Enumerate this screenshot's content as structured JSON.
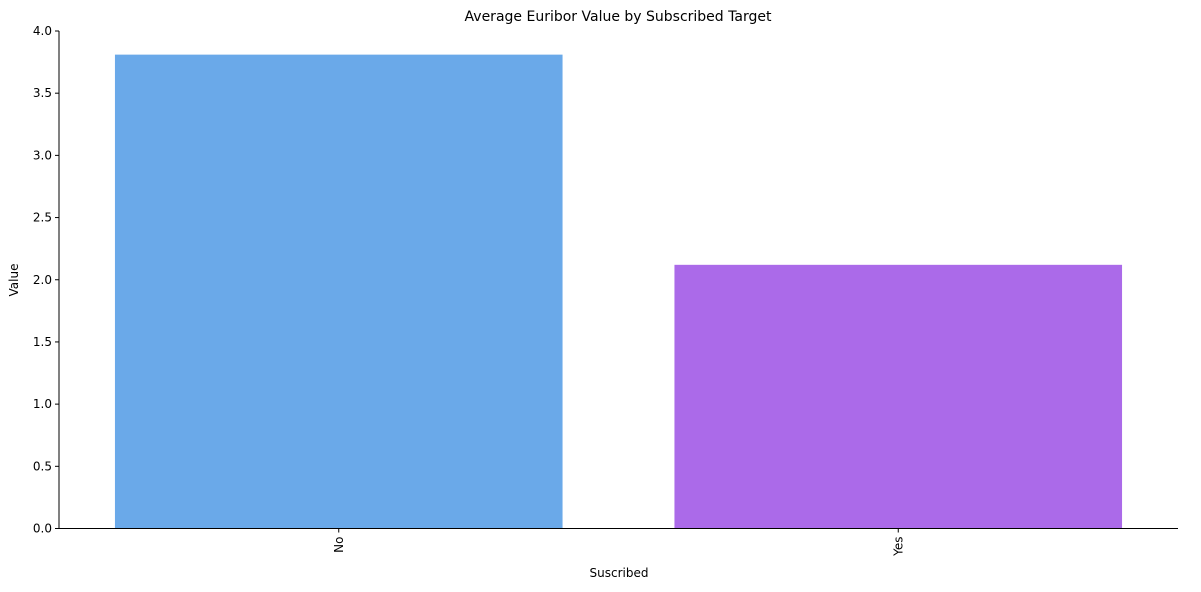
{
  "chart_data": {
    "type": "bar",
    "title": "Average Euribor Value by Subscribed Target",
    "xlabel": "Suscribed",
    "ylabel": "Value",
    "categories": [
      "No",
      "Yes"
    ],
    "values": [
      3.81,
      2.12
    ],
    "colors": [
      "#6aa9e9",
      "#ab6ae9"
    ],
    "ylim": [
      0,
      4.0
    ],
    "yticks": [
      "0.0",
      "0.5",
      "1.0",
      "1.5",
      "2.0",
      "2.5",
      "3.0",
      "3.5",
      "4.0"
    ],
    "grid": false,
    "legend": "none"
  }
}
